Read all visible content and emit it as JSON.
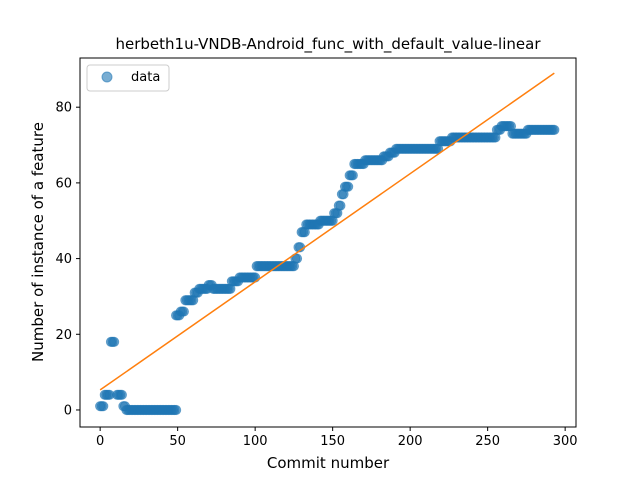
{
  "chart_data": {
    "type": "scatter",
    "title": "herbeth1u-VNDB-Android_func_with_default_value-linear",
    "xlabel": "Commit number",
    "ylabel": "Number of instance of a feature",
    "xlim": [
      -13,
      307
    ],
    "ylim": [
      -4.5,
      93
    ],
    "x_ticks": [
      0,
      50,
      100,
      150,
      200,
      250,
      300
    ],
    "y_ticks": [
      0,
      20,
      40,
      60,
      80
    ],
    "legend": {
      "position": "upper-left",
      "entries": [
        "data"
      ]
    },
    "colors": {
      "points": "#1f77b4",
      "fit_line": "#ff7f0e"
    },
    "series": [
      {
        "name": "data",
        "kind": "scatter",
        "segments": [
          [
            0,
            2,
            1
          ],
          [
            3,
            6,
            4
          ],
          [
            7,
            9,
            18
          ],
          [
            11,
            14,
            4
          ],
          [
            15,
            16,
            1
          ],
          [
            17,
            49,
            0
          ],
          [
            49,
            51,
            25
          ],
          [
            52,
            54,
            26
          ],
          [
            55,
            60,
            29
          ],
          [
            61,
            63,
            31
          ],
          [
            64,
            69,
            32
          ],
          [
            70,
            72,
            33
          ],
          [
            73,
            84,
            32
          ],
          [
            85,
            89,
            34
          ],
          [
            90,
            100,
            35
          ],
          [
            101,
            125,
            38
          ],
          [
            126,
            127,
            40
          ],
          [
            128,
            129,
            43
          ],
          [
            130,
            132,
            47
          ],
          [
            133,
            135,
            49
          ],
          [
            136,
            141,
            49
          ],
          [
            142,
            150,
            50
          ],
          [
            151,
            153,
            52
          ],
          [
            154,
            155,
            54
          ],
          [
            156,
            157,
            57
          ],
          [
            158,
            160,
            59
          ],
          [
            161,
            163,
            62
          ],
          [
            164,
            170,
            65
          ],
          [
            171,
            182,
            66
          ],
          [
            183,
            186,
            67
          ],
          [
            187,
            190,
            68
          ],
          [
            191,
            218,
            69
          ],
          [
            219,
            226,
            71
          ],
          [
            227,
            255,
            72
          ],
          [
            256,
            258,
            74
          ],
          [
            259,
            265,
            75
          ],
          [
            266,
            275,
            73
          ],
          [
            276,
            293,
            74
          ]
        ]
      },
      {
        "name": "linear fit",
        "kind": "line",
        "x": [
          0,
          293
        ],
        "y": [
          5.3,
          89
        ]
      }
    ]
  }
}
